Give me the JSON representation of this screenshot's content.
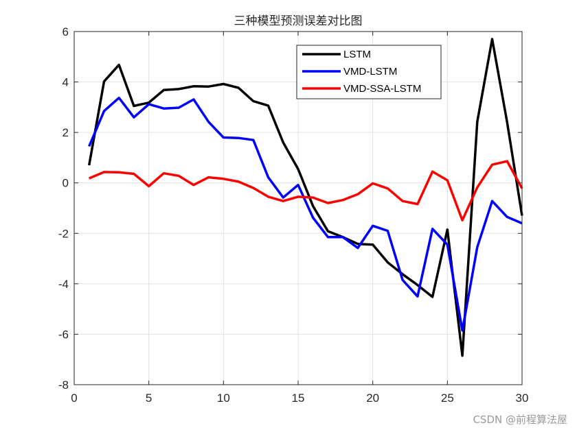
{
  "chart_data": {
    "type": "line",
    "title": "三种模型预测误差对比图",
    "xlabel": "",
    "ylabel": "",
    "xlim": [
      0,
      30
    ],
    "ylim": [
      -8,
      6
    ],
    "xticks": [
      0,
      5,
      10,
      15,
      20,
      25,
      30
    ],
    "yticks": [
      -8,
      -6,
      -4,
      -2,
      0,
      2,
      4,
      6
    ],
    "grid": true,
    "legend_position": "top-right",
    "x": [
      1,
      2,
      3,
      4,
      5,
      6,
      7,
      8,
      9,
      10,
      11,
      12,
      13,
      14,
      15,
      16,
      17,
      18,
      19,
      20,
      21,
      22,
      23,
      24,
      25,
      26,
      27,
      28,
      29,
      30
    ],
    "series": [
      {
        "name": "LSTM",
        "color": "#000000",
        "values": [
          0.7,
          4.02,
          4.68,
          3.05,
          3.18,
          3.68,
          3.72,
          3.83,
          3.82,
          3.92,
          3.77,
          3.24,
          3.06,
          1.6,
          0.55,
          -0.92,
          -1.92,
          -2.15,
          -2.42,
          -2.45,
          -3.15,
          -3.62,
          -4.05,
          -4.52,
          -1.85,
          -6.85,
          2.42,
          5.7,
          2.4,
          -1.3
        ]
      },
      {
        "name": "VMD-LSTM",
        "color": "#0000ff",
        "values": [
          1.45,
          2.85,
          3.37,
          2.6,
          3.12,
          2.95,
          2.98,
          3.31,
          2.42,
          1.8,
          1.78,
          1.7,
          0.22,
          -0.58,
          -0.08,
          -1.38,
          -2.15,
          -2.15,
          -2.58,
          -1.7,
          -1.9,
          -3.85,
          -4.5,
          -1.82,
          -2.45,
          -5.85,
          -2.55,
          -0.72,
          -1.35,
          -1.6
        ]
      },
      {
        "name": "VMD-SSA-LSTM",
        "color": "#ff0000",
        "values": [
          0.18,
          0.43,
          0.42,
          0.36,
          -0.13,
          0.38,
          0.28,
          -0.08,
          0.22,
          0.16,
          0.05,
          -0.2,
          -0.55,
          -0.72,
          -0.55,
          -0.58,
          -0.8,
          -0.68,
          -0.45,
          -0.02,
          -0.22,
          -0.72,
          -0.84,
          0.45,
          0.1,
          -1.48,
          -0.18,
          0.72,
          0.86,
          -0.22
        ]
      }
    ]
  },
  "watermark": "CSDN @前程算法屋"
}
